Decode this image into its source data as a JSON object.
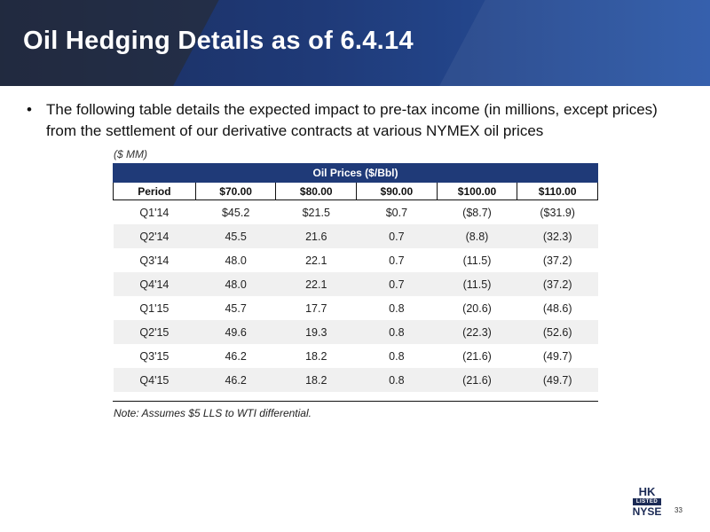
{
  "header": {
    "title": "Oil Hedging Details as of 6.4.14"
  },
  "bullet": {
    "marker": "•",
    "text": "The following table details the expected impact to pre-tax income (in millions, except prices) from the settlement of our derivative contracts at various NYMEX oil prices"
  },
  "table": {
    "units_label": "($ MM)",
    "group_header": "Oil Prices ($/Bbl)",
    "columns": [
      "Period",
      "$70.00",
      "$80.00",
      "$90.00",
      "$100.00",
      "$110.00"
    ],
    "rows": [
      [
        "Q1'14",
        "$45.2",
        "$21.5",
        "$0.7",
        "($8.7)",
        "($31.9)"
      ],
      [
        "Q2'14",
        "45.5",
        "21.6",
        "0.7",
        "(8.8)",
        "(32.3)"
      ],
      [
        "Q3'14",
        "48.0",
        "22.1",
        "0.7",
        "(11.5)",
        "(37.2)"
      ],
      [
        "Q4'14",
        "48.0",
        "22.1",
        "0.7",
        "(11.5)",
        "(37.2)"
      ],
      [
        "Q1'15",
        "45.7",
        "17.7",
        "0.8",
        "(20.6)",
        "(48.6)"
      ],
      [
        "Q2'15",
        "49.6",
        "19.3",
        "0.8",
        "(22.3)",
        "(52.6)"
      ],
      [
        "Q3'15",
        "46.2",
        "18.2",
        "0.8",
        "(21.6)",
        "(49.7)"
      ],
      [
        "Q4'15",
        "46.2",
        "18.2",
        "0.8",
        "(21.6)",
        "(49.7)"
      ]
    ],
    "footnote": "Note: Assumes $5 LLS to WTI differential."
  },
  "logo": {
    "line1": "HK",
    "line2": "LISTED",
    "line3": "NYSE"
  },
  "page_number": "33",
  "colors": {
    "banner": "#1f3a78",
    "header_fill": "#1f3a78",
    "alt_row": "#f0f0f0"
  }
}
